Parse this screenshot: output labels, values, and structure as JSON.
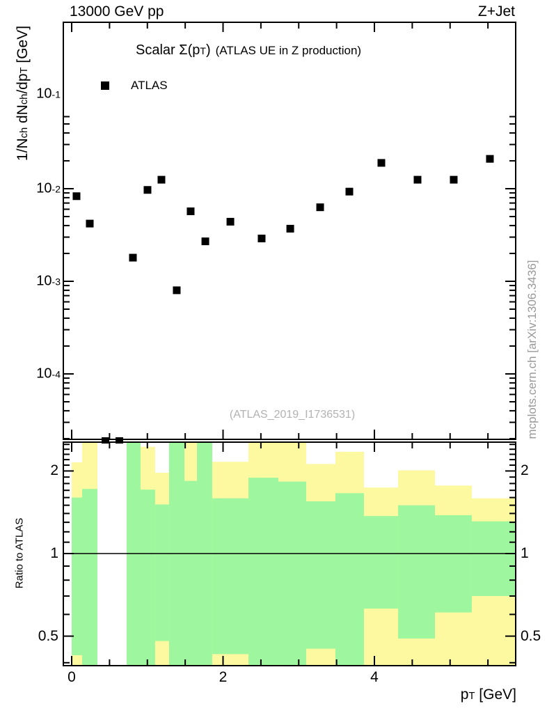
{
  "header": {
    "left": "13000 GeV pp",
    "right": "Z+Jet"
  },
  "main_plot": {
    "title_main": "Scalar Σ(p_{T})",
    "title_paren": "(ATLAS UE in Z production)",
    "legend": [
      {
        "label": "ATLAS",
        "marker": "filled-square",
        "color": "#000000"
      }
    ],
    "ylabel": "1/N_{ch} dN_{ch}/dp_{T} [GeV]",
    "watermark": "(ATLAS_2019_I1736531)",
    "ytick_labels": [
      "10^{-1}",
      "10^{-2}",
      "10^{-3}",
      "10^{-4}"
    ]
  },
  "ratio_plot": {
    "ylabel": "Ratio to ATLAS",
    "ytick_labels": [
      "2",
      "1",
      "0.5"
    ]
  },
  "x_axis": {
    "label": "p_{T} [GeV]",
    "tick_labels": [
      "0",
      "2",
      "4"
    ]
  },
  "side_text": "mcplots.cern.ch [arXiv:1306.3436]",
  "colors": {
    "band_yellow": "#fcf9a0",
    "band_green": "#9ef79e",
    "marker": "#000000",
    "watermark_gray": "#b2b2b2",
    "side_gray": "#999999",
    "frame": "#000000"
  },
  "chart_data": {
    "type": "scatter",
    "title": "Scalar Σ(p_T) (ATLAS UE in Z production)",
    "xlabel": "p_T [GeV]",
    "x_range": [
      -0.1,
      5.86
    ],
    "x_major_ticks": [
      0,
      2,
      4
    ],
    "x_minor_step": 0.5,
    "main": {
      "ylabel": "1/N_ch dN_ch/dp_T [GeV]",
      "yscale": "log",
      "ylim": [
        2e-05,
        0.0615
      ],
      "series": [
        {
          "name": "ATLAS",
          "marker": "filled-square",
          "color": "#000000",
          "points": [
            [
              0.064,
              0.0083
            ],
            [
              0.239,
              0.0042
            ],
            [
              0.809,
              0.0018
            ],
            [
              1.002,
              0.0097
            ],
            [
              1.186,
              0.0125
            ],
            [
              1.388,
              0.0008
            ],
            [
              1.572,
              0.0057
            ],
            [
              1.766,
              0.0027
            ],
            [
              2.097,
              0.0044
            ],
            [
              2.51,
              0.0029
            ],
            [
              2.888,
              0.0037
            ],
            [
              3.283,
              0.0063
            ],
            [
              3.669,
              0.0093
            ],
            [
              4.092,
              0.019
            ],
            [
              4.57,
              0.0125
            ],
            [
              5.048,
              0.0125
            ],
            [
              5.526,
              0.021
            ]
          ]
        }
      ],
      "clipped_points_below_range_x": [
        0.446,
        0.63
      ]
    },
    "ratio": {
      "ylabel": "Ratio to ATLAS",
      "yscale": "log",
      "ylim": [
        0.392,
        2.53
      ],
      "reference_line": 1,
      "yticks_labeled": [
        0.5,
        1,
        2
      ],
      "bands_note": "yellow=total uncertainty band, green=stat band, null=no band (white gap); 0.38/2.6 mean clipped beyond panel",
      "bands": [
        {
          "lo": 0.0,
          "hi": 0.138,
          "yellow": [
            0.38,
            2.15
          ],
          "green": [
            0.426,
            1.6
          ]
        },
        {
          "lo": 0.138,
          "hi": 0.34,
          "yellow": [
            0.38,
            2.6
          ],
          "green": [
            0.38,
            1.72
          ]
        },
        {
          "lo": 0.34,
          "hi": 0.533,
          "yellow": null,
          "green": null
        },
        {
          "lo": 0.533,
          "hi": 0.726,
          "yellow": null,
          "green": null
        },
        {
          "lo": 0.726,
          "hi": 0.91,
          "yellow": [
            0.38,
            2.6
          ],
          "green": [
            0.38,
            2.6
          ]
        },
        {
          "lo": 0.91,
          "hi": 1.103,
          "yellow": [
            0.38,
            2.45
          ],
          "green": [
            0.38,
            1.71
          ]
        },
        {
          "lo": 1.103,
          "hi": 1.287,
          "yellow": [
            0.38,
            1.97
          ],
          "green": [
            0.48,
            1.51
          ]
        },
        {
          "lo": 1.287,
          "hi": 1.49,
          "yellow": [
            0.38,
            2.6
          ],
          "green": [
            0.38,
            2.6
          ]
        },
        {
          "lo": 1.49,
          "hi": 1.655,
          "yellow": [
            0.38,
            2.6
          ],
          "green": [
            0.38,
            1.84
          ]
        },
        {
          "lo": 1.655,
          "hi": 1.857,
          "yellow": [
            0.38,
            2.6
          ],
          "green": [
            0.38,
            2.6
          ]
        },
        {
          "lo": 1.857,
          "hi": 2.336,
          "yellow": [
            0.38,
            2.16
          ],
          "green": [
            0.43,
            1.59
          ]
        },
        {
          "lo": 2.336,
          "hi": 2.731,
          "yellow": [
            0.38,
            2.6
          ],
          "green": [
            0.38,
            1.89
          ]
        },
        {
          "lo": 2.731,
          "hi": 3.099,
          "yellow": [
            0.38,
            2.6
          ],
          "green": [
            0.38,
            1.83
          ]
        },
        {
          "lo": 3.099,
          "hi": 3.485,
          "yellow": [
            0.38,
            2.12
          ],
          "green": [
            0.45,
            1.55
          ]
        },
        {
          "lo": 3.485,
          "hi": 3.862,
          "yellow": [
            0.38,
            2.35
          ],
          "green": [
            0.38,
            1.66
          ]
        },
        {
          "lo": 3.862,
          "hi": 4.313,
          "yellow": [
            0.38,
            1.74
          ],
          "green": [
            0.63,
            1.37
          ]
        },
        {
          "lo": 4.313,
          "hi": 4.8,
          "yellow": [
            0.38,
            2.01
          ],
          "green": [
            0.49,
            1.5
          ]
        },
        {
          "lo": 4.8,
          "hi": 5.287,
          "yellow": [
            0.38,
            1.77
          ],
          "green": [
            0.61,
            1.38
          ]
        },
        {
          "lo": 5.287,
          "hi": 5.857,
          "yellow": [
            0.38,
            1.59
          ],
          "green": [
            0.7,
            1.31
          ]
        }
      ]
    }
  }
}
